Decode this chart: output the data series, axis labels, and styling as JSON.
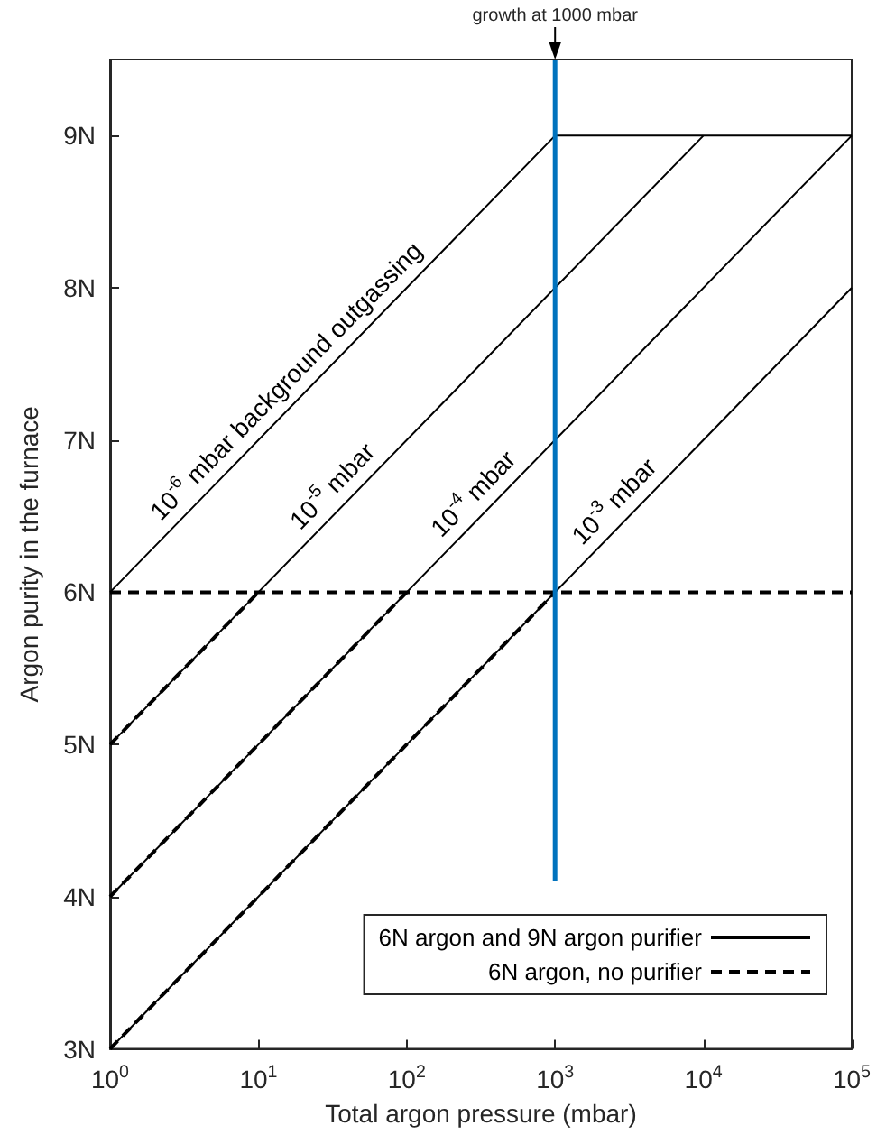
{
  "chart_data": {
    "type": "line",
    "xlabel": "Total argon pressure (mbar)",
    "ylabel": "Argon purity in the furnace",
    "log": "x",
    "xlim": [
      1,
      100000
    ],
    "ylim": [
      3,
      9.5
    ],
    "xticks": [
      {
        "value": 1,
        "label": "10$^{0}$"
      },
      {
        "value": 10,
        "label": "10$^{1}$"
      },
      {
        "value": 100,
        "label": "10$^{2}$"
      },
      {
        "value": 1000,
        "label": "10$^{3}$"
      },
      {
        "value": 10000,
        "label": "10$^{4}$"
      },
      {
        "value": 100000,
        "label": "10$^{5}$"
      }
    ],
    "yticks": [
      {
        "value": 3,
        "label": "3N"
      },
      {
        "value": 4,
        "label": "4N"
      },
      {
        "value": 5,
        "label": "5N"
      },
      {
        "value": 6,
        "label": "6N"
      },
      {
        "value": 7,
        "label": "7N"
      },
      {
        "value": 8,
        "label": "8N"
      },
      {
        "value": 9,
        "label": "9N"
      }
    ],
    "grid": false,
    "legend": "bottom right",
    "marker": "none",
    "series": [
      {
        "name": "6N argon and 9N argon purifier",
        "color": "#000000",
        "line_style": "solid",
        "x": [
          1,
          1000,
          100000
        ],
        "values": [
          6,
          9,
          9
        ]
      },
      {
        "color": "#000000",
        "line_style": "solid",
        "x": [
          1,
          10000
        ],
        "values": [
          5,
          9
        ]
      },
      {
        "color": "#000000",
        "line_style": "solid",
        "x": [
          1,
          100000
        ],
        "values": [
          4,
          9
        ]
      },
      {
        "color": "#000000",
        "line_style": "solid",
        "x": [
          1,
          100000
        ],
        "values": [
          3,
          8
        ]
      },
      {
        "name": "6N argon, no purifier",
        "color": "#000000",
        "line_style": "dashed",
        "x": [
          1,
          100000
        ],
        "values": [
          6,
          6
        ]
      },
      {
        "color": "#000000",
        "line_style": "dashed",
        "x": [
          1,
          10
        ],
        "values": [
          5,
          6
        ]
      },
      {
        "color": "#000000",
        "line_style": "dashed",
        "x": [
          1,
          100
        ],
        "values": [
          4,
          6
        ]
      },
      {
        "color": "#000000",
        "line_style": "dashed",
        "x": [
          1,
          1000
        ],
        "values": [
          3,
          6
        ]
      },
      {
        "color": "#0072bd",
        "line_style": "solid",
        "x": [
          1000,
          1000
        ],
        "values": [
          4.1,
          9.5
        ]
      }
    ],
    "annotations": [
      "10$^{-6}$ mbar background outgassing",
      "10$^{-5}$ mbar",
      "10$^{-4}$ mbar",
      "10$^{-3}$ mbar",
      {
        "text": "growth at 1000 mbar",
        "x": 1000,
        "y": 9.5
      }
    ]
  }
}
